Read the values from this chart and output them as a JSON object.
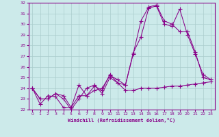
{
  "xlabel": "Windchill (Refroidissement éolien,°C)",
  "ylabel": "",
  "background_color": "#cceaea",
  "grid_color": "#aacccc",
  "line_color": "#880088",
  "xlim": [
    -0.5,
    23.5
  ],
  "ylim": [
    22,
    32
  ],
  "xticks": [
    0,
    1,
    2,
    3,
    4,
    5,
    6,
    7,
    8,
    9,
    10,
    11,
    12,
    13,
    14,
    15,
    16,
    17,
    18,
    19,
    20,
    21,
    22,
    23
  ],
  "yticks": [
    22,
    23,
    24,
    25,
    26,
    27,
    28,
    29,
    30,
    31,
    32
  ],
  "line1_x": [
    0,
    1,
    2,
    3,
    4,
    5,
    6,
    7,
    8,
    9,
    10,
    11,
    12,
    13,
    14,
    15,
    16,
    17,
    18,
    19,
    20,
    21,
    22,
    23
  ],
  "line1_y": [
    24.0,
    22.5,
    23.3,
    23.2,
    22.2,
    22.2,
    23.3,
    23.3,
    23.8,
    24.0,
    25.2,
    24.8,
    24.3,
    27.2,
    30.3,
    31.6,
    31.8,
    30.3,
    30.0,
    29.3,
    29.3,
    27.4,
    25.0,
    24.8
  ],
  "line2_x": [
    0,
    1,
    2,
    3,
    4,
    5,
    6,
    7,
    8,
    9,
    10,
    11,
    12,
    13,
    14,
    15,
    16,
    17,
    18,
    19,
    20,
    21,
    22,
    23
  ],
  "line2_y": [
    24.0,
    23.0,
    23.0,
    23.5,
    23.3,
    22.2,
    24.3,
    23.3,
    24.2,
    23.8,
    25.3,
    24.5,
    23.8,
    23.8,
    24.0,
    24.0,
    24.0,
    24.1,
    24.2,
    24.2,
    24.3,
    24.4,
    24.5,
    24.6
  ],
  "line3_x": [
    0,
    1,
    2,
    3,
    4,
    5,
    6,
    7,
    8,
    9,
    10,
    11,
    12,
    13,
    14,
    15,
    16,
    17,
    18,
    19,
    20,
    21,
    22,
    23
  ],
  "line3_y": [
    24.0,
    23.0,
    23.0,
    23.5,
    23.0,
    22.0,
    23.0,
    24.0,
    24.3,
    23.5,
    25.0,
    24.5,
    24.3,
    27.3,
    28.8,
    31.5,
    31.7,
    30.0,
    29.8,
    31.4,
    29.0,
    27.2,
    25.3,
    24.8
  ]
}
